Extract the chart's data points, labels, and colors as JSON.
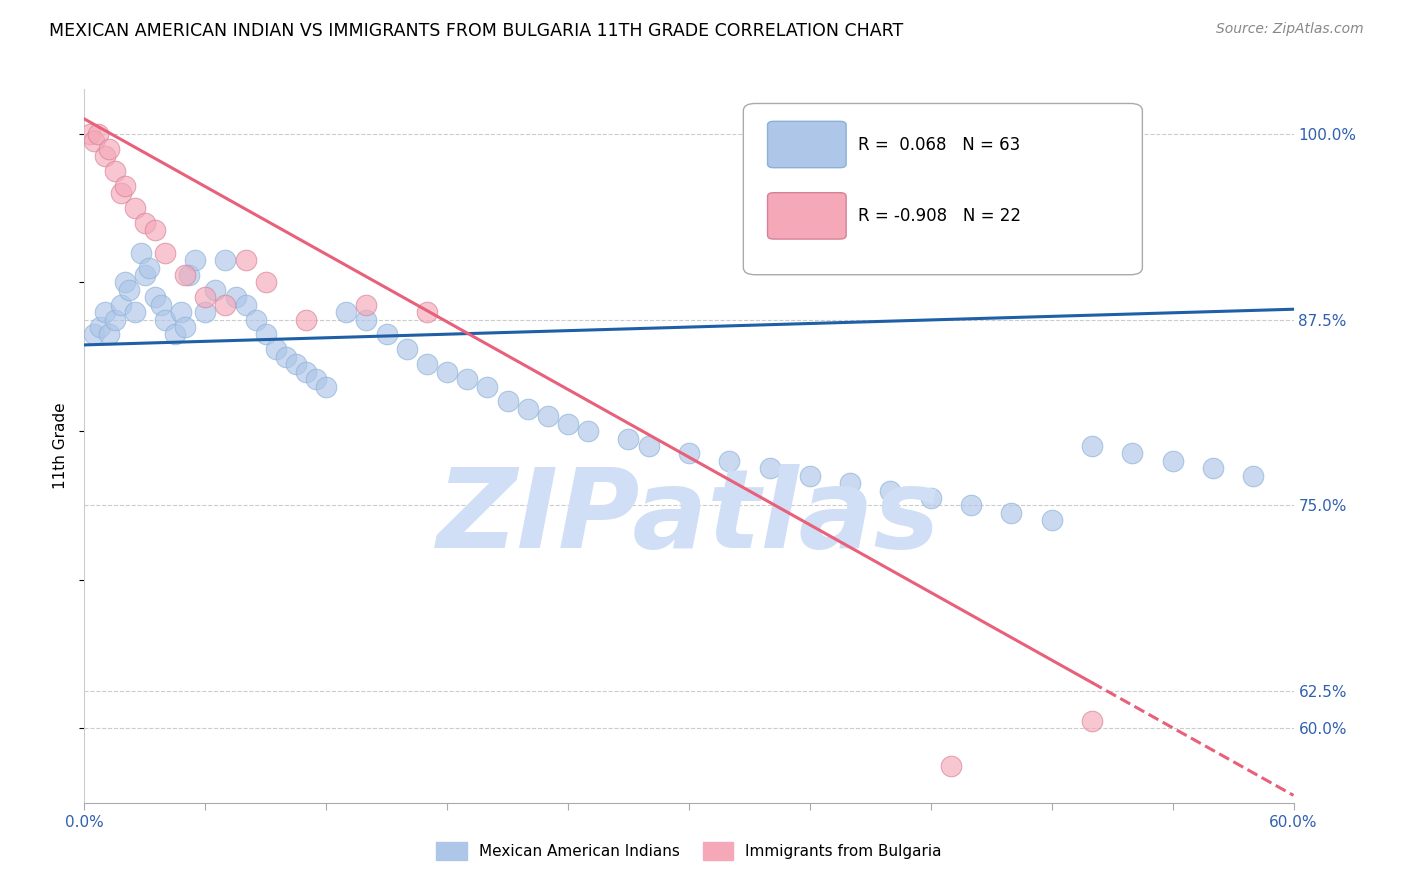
{
  "title": "MEXICAN AMERICAN INDIAN VS IMMIGRANTS FROM BULGARIA 11TH GRADE CORRELATION CHART",
  "source": "Source: ZipAtlas.com",
  "ylabel": "11th Grade",
  "legend_blue_r": "0.068",
  "legend_blue_n": "63",
  "legend_pink_r": "-0.908",
  "legend_pink_n": "22",
  "blue_color": "#aec6e8",
  "pink_color": "#f4a8b8",
  "blue_line_color": "#1f5fa6",
  "pink_line_color": "#e8607a",
  "watermark": "ZIPatlas",
  "watermark_color": "#d0dff5",
  "xmin": 0.0,
  "xmax": 60.0,
  "ymin": 55.0,
  "ymax": 103.0,
  "blue_x": [
    0.5,
    0.8,
    1.0,
    1.2,
    1.5,
    1.8,
    2.0,
    2.2,
    2.5,
    2.8,
    3.0,
    3.2,
    3.5,
    3.8,
    4.0,
    4.5,
    4.8,
    5.0,
    5.2,
    5.5,
    6.0,
    6.5,
    7.0,
    7.5,
    8.0,
    8.5,
    9.0,
    9.5,
    10.0,
    10.5,
    11.0,
    11.5,
    12.0,
    13.0,
    14.0,
    15.0,
    16.0,
    17.0,
    18.0,
    19.0,
    20.0,
    21.0,
    22.0,
    23.0,
    24.0,
    25.0,
    27.0,
    28.0,
    30.0,
    32.0,
    34.0,
    36.0,
    38.0,
    40.0,
    42.0,
    44.0,
    46.0,
    48.0,
    50.0,
    52.0,
    54.0,
    56.0,
    58.0
  ],
  "blue_y": [
    86.5,
    87.0,
    88.0,
    86.5,
    87.5,
    88.5,
    90.0,
    89.5,
    88.0,
    92.0,
    90.5,
    91.0,
    89.0,
    88.5,
    87.5,
    86.5,
    88.0,
    87.0,
    90.5,
    91.5,
    88.0,
    89.5,
    91.5,
    89.0,
    88.5,
    87.5,
    86.5,
    85.5,
    85.0,
    84.5,
    84.0,
    83.5,
    83.0,
    88.0,
    87.5,
    86.5,
    85.5,
    84.5,
    84.0,
    83.5,
    83.0,
    82.0,
    81.5,
    81.0,
    80.5,
    80.0,
    79.5,
    79.0,
    78.5,
    78.0,
    77.5,
    77.0,
    76.5,
    76.0,
    75.5,
    75.0,
    74.5,
    74.0,
    79.0,
    78.5,
    78.0,
    77.5,
    77.0
  ],
  "pink_x": [
    0.3,
    0.5,
    0.7,
    1.0,
    1.2,
    1.5,
    1.8,
    2.0,
    2.5,
    3.0,
    3.5,
    4.0,
    5.0,
    6.0,
    7.0,
    8.0,
    9.0,
    11.0,
    14.0,
    17.0,
    43.0,
    50.0
  ],
  "pink_y": [
    100.0,
    99.5,
    100.0,
    98.5,
    99.0,
    97.5,
    96.0,
    96.5,
    95.0,
    94.0,
    93.5,
    92.0,
    90.5,
    89.0,
    88.5,
    91.5,
    90.0,
    87.5,
    88.5,
    88.0,
    57.5,
    60.5
  ],
  "blue_line_x0": 0.0,
  "blue_line_x1": 60.0,
  "blue_line_y0": 85.8,
  "blue_line_y1": 88.2,
  "pink_line_x0": 0.0,
  "pink_line_x1": 60.0,
  "pink_line_y0": 101.0,
  "pink_line_y1": 55.5,
  "pink_solid_end": 50.0,
  "right_yticks": [
    60.0,
    62.5,
    75.0,
    87.5,
    100.0
  ],
  "xtick_left_label": "0.0%",
  "xtick_right_label": "60.0%"
}
